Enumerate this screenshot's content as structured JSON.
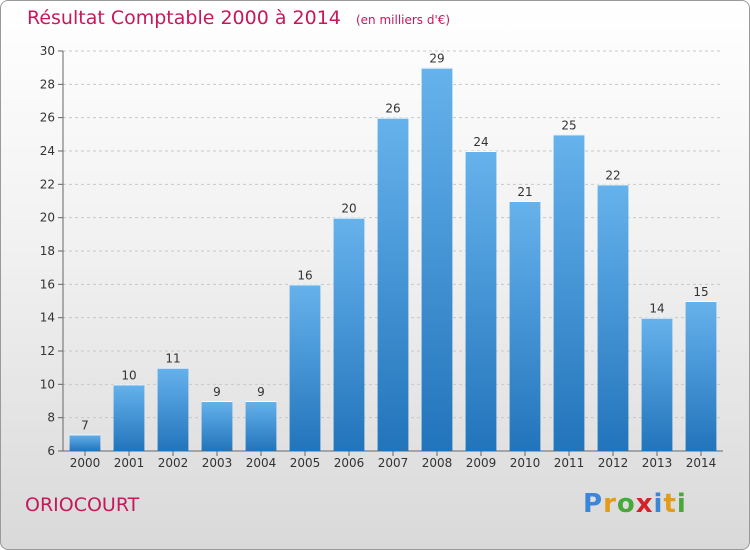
{
  "header": {
    "title": "Résultat Comptable 2000 à 2014",
    "unit": "(en milliers d'€)"
  },
  "footer": {
    "commune": "ORIOCOURT",
    "logo": {
      "letters": [
        "P",
        "r",
        "o",
        "x",
        "i",
        "t",
        "i"
      ],
      "colors": [
        "#3a86d9",
        "#e39b1a",
        "#4aa83a",
        "#d6202a",
        "#3a86d9",
        "#e39b1a",
        "#4aa83a"
      ]
    }
  },
  "colors": {
    "accent": "#c8185c",
    "bar_top": "#66b2ec",
    "bar_bottom": "#2274bb"
  },
  "chart_data": {
    "type": "bar",
    "title": "Résultat Comptable 2000 à 2014",
    "subtitle": "(en milliers d'€)",
    "categories": [
      "2000",
      "2001",
      "2002",
      "2003",
      "2004",
      "2005",
      "2006",
      "2007",
      "2008",
      "2009",
      "2010",
      "2011",
      "2012",
      "2013",
      "2014"
    ],
    "values": [
      7,
      10,
      11,
      9,
      9,
      16,
      20,
      26,
      29,
      24,
      21,
      25,
      22,
      14,
      15
    ],
    "ylim": [
      6,
      30
    ],
    "yticks": [
      6,
      8,
      10,
      12,
      14,
      16,
      18,
      20,
      22,
      24,
      26,
      28,
      30
    ],
    "grid": "horizontal dashed",
    "legend": "none"
  }
}
